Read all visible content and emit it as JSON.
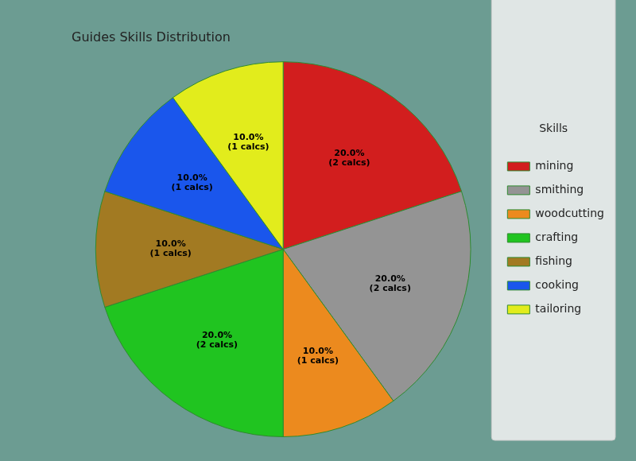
{
  "chart_data": {
    "type": "pie",
    "title": "Guides Skills Distribution",
    "legend_title": "Skills",
    "categories": [
      "mining",
      "smithing",
      "woodcutting",
      "crafting",
      "fishing",
      "cooking",
      "tailoring"
    ],
    "values": [
      20,
      20,
      10,
      20,
      10,
      10,
      10
    ],
    "value_labels": [
      "20.0%\n(2 calcs)",
      "20.0%\n(2 calcs)",
      "10.0%\n(1 calcs)",
      "20.0%\n(2 calcs)",
      "10.0%\n(1 calcs)",
      "10.0%\n(1 calcs)",
      "10.0%\n(1 calcs)"
    ],
    "colors": [
      "#d21e1e",
      "#949494",
      "#ec8a1e",
      "#20c420",
      "#a27a22",
      "#1a56ec",
      "#e2ec1c"
    ],
    "data_labels": true,
    "legend": "right"
  }
}
